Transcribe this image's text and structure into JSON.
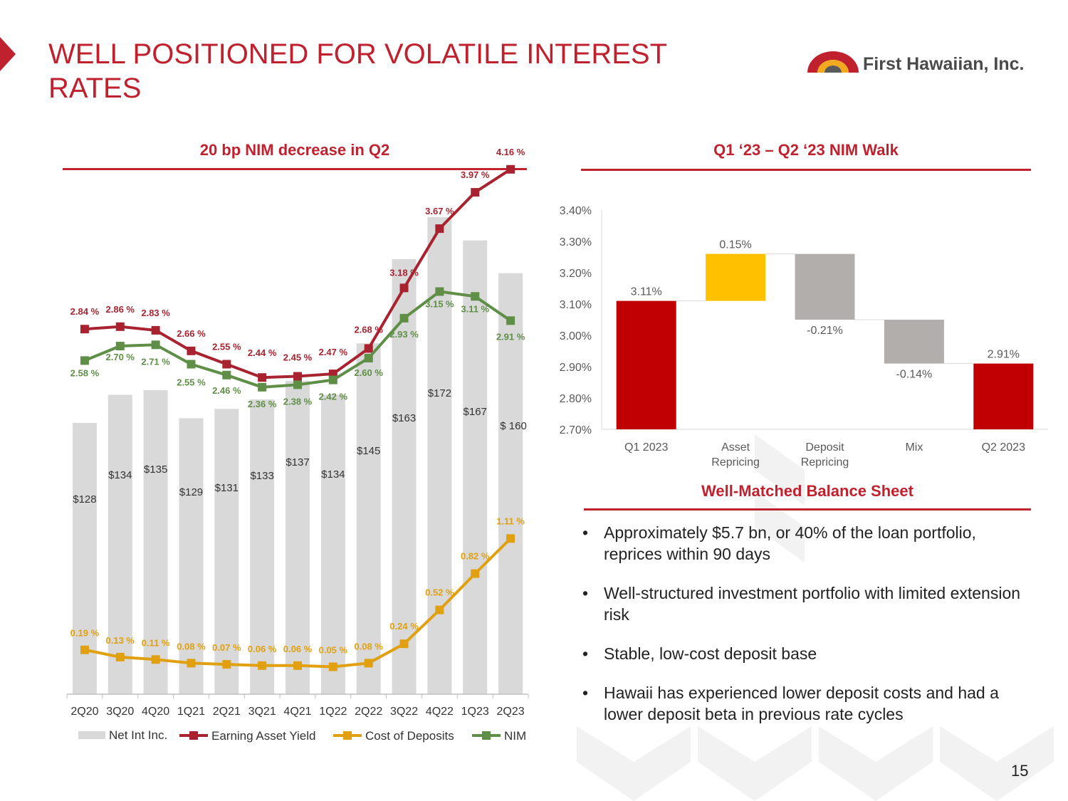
{
  "title": "WELL POSITIONED FOR VOLATILE INTEREST RATES",
  "logo": {
    "text": "First Hawaiian, Inc."
  },
  "left_section": {
    "heading": "20 bp NIM decrease in Q2"
  },
  "right_section": {
    "heading": "Q1 ‘23 – Q2 ‘23 NIM Walk"
  },
  "balance_section": {
    "heading": "Well-Matched Balance Sheet"
  },
  "bullets": [
    "Approximately $5.7 bn, or 40% of the loan portfolio, reprices within 90 days",
    "Well-structured investment portfolio with limited extension risk",
    "Stable, low-cost deposit base",
    "Hawaii has experienced lower deposit costs and had a lower deposit beta in previous rate cycles"
  ],
  "page_number": "15",
  "colors": {
    "brand": "#c0212f",
    "yield": "#a8232f",
    "deposits": "#e0a010",
    "nim": "#5f8f47",
    "bars": "#d9d9d9",
    "walk_up": "#ffc000",
    "walk_down": "#b1aeac",
    "walk_total": "#c00000"
  },
  "chart_data": [
    {
      "type": "bar+line",
      "title": "20 bp NIM decrease in Q2",
      "categories": [
        "2Q20",
        "3Q20",
        "4Q20",
        "1Q21",
        "2Q21",
        "3Q21",
        "4Q21",
        "1Q22",
        "2Q22",
        "3Q22",
        "4Q22",
        "1Q23",
        "2Q23"
      ],
      "bar_series": {
        "name": "Net Int Inc.",
        "values": [
          128,
          134,
          135,
          129,
          131,
          133,
          137,
          134,
          145,
          163,
          172,
          167,
          160
        ],
        "labels": [
          "$128",
          "$134",
          "$135",
          "$129",
          "$131",
          "$133",
          "$137",
          "$134",
          "$145",
          "$163",
          "$172",
          "$167",
          "$ 160"
        ]
      },
      "line_series": [
        {
          "name": "Earning Asset Yield",
          "values": [
            2.84,
            2.86,
            2.83,
            2.66,
            2.55,
            2.44,
            2.45,
            2.47,
            2.68,
            3.18,
            3.67,
            3.97,
            4.16
          ],
          "labels": [
            "2.84 %",
            "2.86 %",
            "2.83 %",
            "2.66 %",
            "2.55 %",
            "2.44 %",
            "2.45 %",
            "2.47 %",
            "2.68 %",
            "3.18 %",
            "3.67 %",
            "3.97 %",
            "4.16 %"
          ]
        },
        {
          "name": "Cost of Deposits",
          "values": [
            0.19,
            0.13,
            0.11,
            0.08,
            0.07,
            0.06,
            0.06,
            0.05,
            0.08,
            0.24,
            0.52,
            0.82,
            1.11
          ],
          "labels": [
            "0.19 %",
            "0.13 %",
            "0.11 %",
            "0.08 %",
            "0.07 %",
            "0.06 %",
            "0.06 %",
            "0.05 %",
            "0.08 %",
            "0.24 %",
            "0.52 %",
            "0.82 %",
            "1.11 %"
          ]
        },
        {
          "name": "NIM",
          "values": [
            2.58,
            2.7,
            2.71,
            2.55,
            2.46,
            2.36,
            2.38,
            2.42,
            2.6,
            2.93,
            3.15,
            3.11,
            2.91
          ],
          "labels": [
            "2.58 %",
            "2.70 %",
            "2.71 %",
            "2.55 %",
            "2.46 %",
            "2.36 %",
            "2.38 %",
            "2.42 %",
            "2.60 %",
            "2.93 %",
            "3.15 %",
            "3.11 %",
            "2.91 %"
          ]
        }
      ],
      "legend": [
        "Net Int Inc.",
        "Earning Asset Yield",
        "Cost of Deposits",
        "NIM"
      ],
      "legend_position": "bottom"
    },
    {
      "type": "waterfall",
      "title": "Q1 ‘23 – Q2 ‘23 NIM Walk",
      "categories": [
        "Q1 2023",
        "Asset Repricing",
        "Deposit Repricing",
        "Mix",
        "Q2 2023"
      ],
      "category_lines": [
        [
          "Q1 2023"
        ],
        [
          "Asset",
          "Repricing"
        ],
        [
          "Deposit",
          "Repricing"
        ],
        [
          "Mix"
        ],
        [
          "Q2 2023"
        ]
      ],
      "values": [
        3.11,
        0.15,
        -0.21,
        -0.14,
        2.91
      ],
      "kinds": [
        "total",
        "delta",
        "delta",
        "delta",
        "total"
      ],
      "labels": [
        "3.11%",
        "0.15%",
        "-0.21%",
        "-0.14%",
        "2.91%"
      ],
      "ylim": [
        2.7,
        3.4
      ],
      "yticks": [
        "2.70%",
        "2.80%",
        "2.90%",
        "3.00%",
        "3.10%",
        "3.20%",
        "3.30%",
        "3.40%"
      ]
    }
  ]
}
